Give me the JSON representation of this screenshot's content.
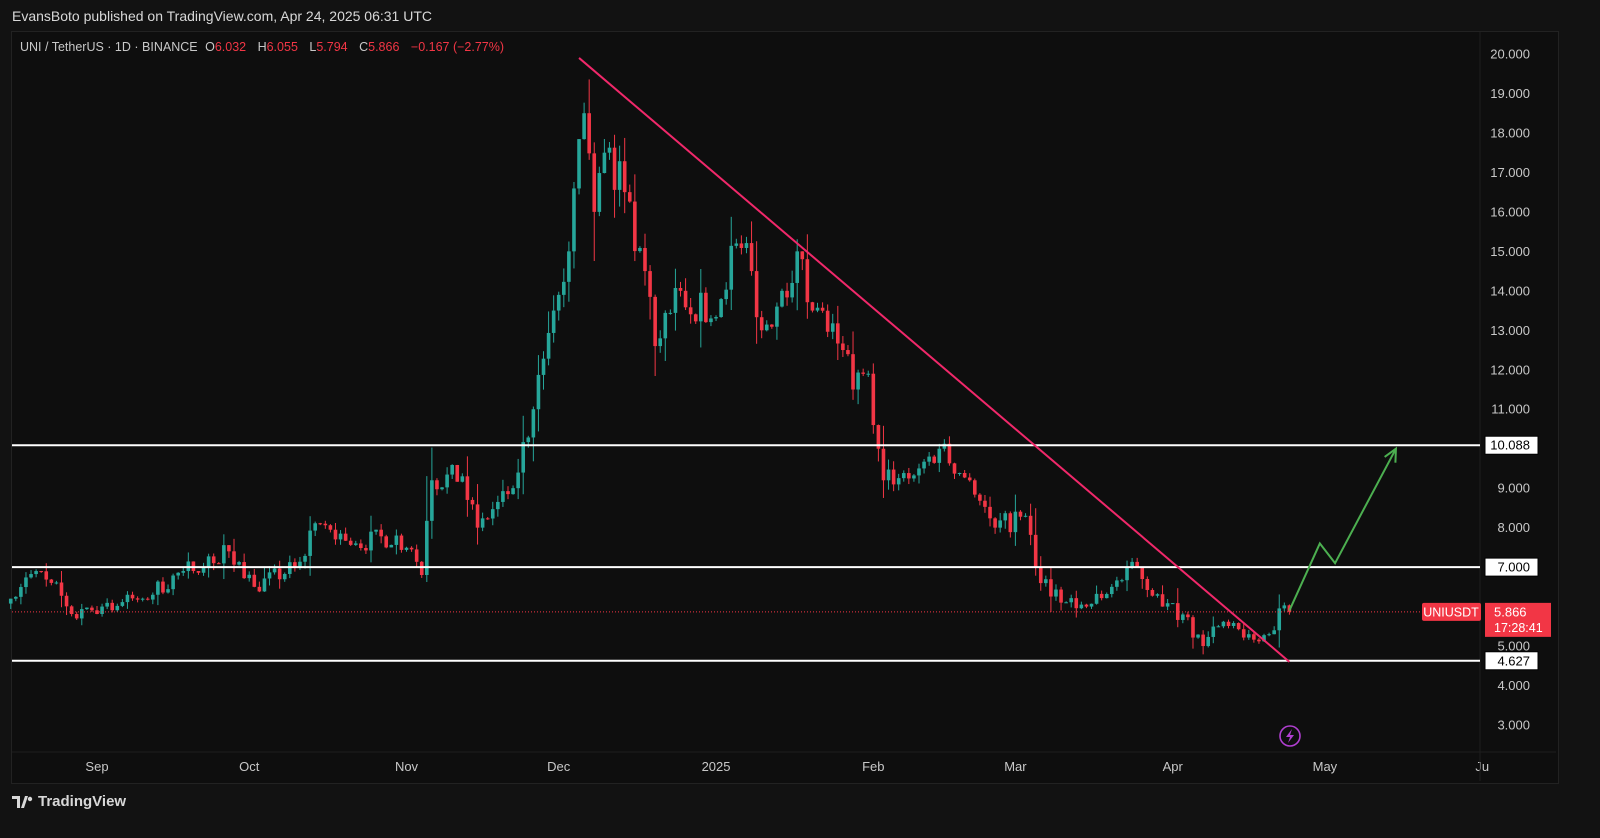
{
  "header": {
    "published": "EvansBoto published on TradingView.com, Apr 24, 2025 06:31 UTC"
  },
  "legend": {
    "symbol": "UNI / TetherUS · 1D · BINANCE",
    "o_label": "O",
    "o": "6.032",
    "h_label": "H",
    "h": "6.055",
    "l_label": "L",
    "l": "5.794",
    "c_label": "C",
    "c": "5.866",
    "change": "−0.167 (−2.77%)"
  },
  "price_tag": {
    "symbol": "UNIUSDT",
    "price": "5.866",
    "countdown": "17:28:41"
  },
  "footer": {
    "brand": "TradingView"
  },
  "colors": {
    "up": "#26a69a",
    "down": "#f23645",
    "trendline": "#f0286a",
    "arrow": "#4caf50",
    "level": "#ffffff"
  },
  "chart_data": {
    "type": "candlestick",
    "title": "UNI / TetherUS · 1D · BINANCE",
    "ylim": [
      3,
      20
    ],
    "yticks": [
      "20.000",
      "19.000",
      "18.000",
      "17.000",
      "16.000",
      "15.000",
      "14.000",
      "13.000",
      "12.000",
      "11.000",
      "9.000",
      "8.000",
      "5.000",
      "4.000",
      "3.000"
    ],
    "xticks": [
      {
        "label": "Sep",
        "date": "2024-09-01"
      },
      {
        "label": "Oct",
        "date": "2024-10-01"
      },
      {
        "label": "Nov",
        "date": "2024-11-01"
      },
      {
        "label": "Dec",
        "date": "2024-12-01"
      },
      {
        "label": "2025",
        "date": "2025-01-01"
      },
      {
        "label": "Feb",
        "date": "2025-02-01"
      },
      {
        "label": "Mar",
        "date": "2025-03-01"
      },
      {
        "label": "Apr",
        "date": "2025-04-01"
      },
      {
        "label": "May",
        "date": "2025-05-01"
      },
      {
        "label": "Ju",
        "date": "2025-06-01"
      }
    ],
    "x_range": [
      "2024-08-15",
      "2025-06-01"
    ],
    "close_anchors": [
      [
        "2024-08-15",
        6.2
      ],
      [
        "2024-08-20",
        6.9
      ],
      [
        "2024-08-23",
        6.6
      ],
      [
        "2024-08-28",
        5.7
      ],
      [
        "2024-09-02",
        6.0
      ],
      [
        "2024-09-10",
        6.2
      ],
      [
        "2024-09-18",
        6.9
      ],
      [
        "2024-09-27",
        7.4
      ],
      [
        "2024-10-02",
        6.5
      ],
      [
        "2024-10-10",
        7.0
      ],
      [
        "2024-10-15",
        8.1
      ],
      [
        "2024-10-22",
        7.6
      ],
      [
        "2024-10-30",
        7.8
      ],
      [
        "2024-11-04",
        6.8
      ],
      [
        "2024-11-06",
        9.2
      ],
      [
        "2024-11-12",
        9.3
      ],
      [
        "2024-11-15",
        8.0
      ],
      [
        "2024-11-22",
        9.0
      ],
      [
        "2024-11-26",
        11.0
      ],
      [
        "2024-11-30",
        13.5
      ],
      [
        "2024-12-03",
        15.0
      ],
      [
        "2024-12-06",
        18.5
      ],
      [
        "2024-12-08",
        16.0
      ],
      [
        "2024-12-10",
        17.5
      ],
      [
        "2024-12-14",
        16.5
      ],
      [
        "2024-12-18",
        14.5
      ],
      [
        "2024-12-20",
        12.6
      ],
      [
        "2024-12-25",
        14.0
      ],
      [
        "2024-12-31",
        13.3
      ],
      [
        "2025-01-05",
        15.2
      ],
      [
        "2025-01-08",
        14.5
      ],
      [
        "2025-01-10",
        13.0
      ],
      [
        "2025-01-14",
        14.0
      ],
      [
        "2025-01-17",
        15.0
      ],
      [
        "2025-01-20",
        13.5
      ],
      [
        "2025-01-26",
        12.5
      ],
      [
        "2025-01-28",
        11.5
      ],
      [
        "2025-01-31",
        11.9
      ],
      [
        "2025-02-02",
        10.0
      ],
      [
        "2025-02-03",
        9.2
      ],
      [
        "2025-02-10",
        9.5
      ],
      [
        "2025-02-14",
        10.0
      ],
      [
        "2025-02-20",
        9.2
      ],
      [
        "2025-02-25",
        8.0
      ],
      [
        "2025-03-03",
        8.3
      ],
      [
        "2025-03-05",
        7.0
      ],
      [
        "2025-03-10",
        6.1
      ],
      [
        "2025-03-15",
        6.0
      ],
      [
        "2025-03-20",
        6.5
      ],
      [
        "2025-03-25",
        7.0
      ],
      [
        "2025-03-30",
        6.0
      ],
      [
        "2025-04-03",
        5.8
      ],
      [
        "2025-04-07",
        5.0
      ],
      [
        "2025-04-10",
        5.5
      ],
      [
        "2025-04-16",
        5.3
      ],
      [
        "2025-04-20",
        5.3
      ],
      [
        "2025-04-23",
        6.03
      ],
      [
        "2025-04-24",
        5.866
      ]
    ],
    "last_ohlc": {
      "open": 6.032,
      "high": 6.055,
      "low": 5.794,
      "close": 5.866
    },
    "levels": [
      {
        "price": 10.088,
        "label": "10.088"
      },
      {
        "price": 7.0,
        "label": "7.000"
      },
      {
        "price": 4.627,
        "label": "4.627"
      }
    ],
    "trendline": [
      [
        "2024-12-05",
        19.9
      ],
      [
        "2025-04-24",
        4.6
      ]
    ],
    "projection_arrow": [
      [
        "2025-04-24",
        5.9
      ],
      [
        "2025-04-30",
        7.6
      ],
      [
        "2025-05-03",
        7.1
      ],
      [
        "2025-05-15",
        10.0
      ]
    ]
  }
}
